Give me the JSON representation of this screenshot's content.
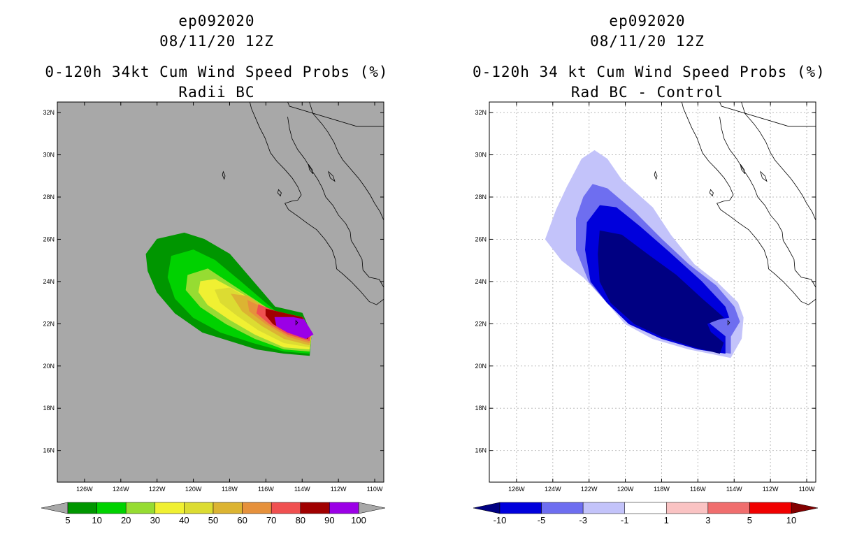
{
  "panels": [
    {
      "storm_id": "ep092020",
      "datetime": "08/11/20 12Z",
      "product_title": "0-120h 34kt Cum Wind Speed Probs (%)",
      "subtitle": "Radii BC",
      "background": "#a8a8a8",
      "lat_ticks": [
        "32N",
        "30N",
        "28N",
        "26N",
        "24N",
        "22N",
        "20N",
        "18N",
        "16N"
      ],
      "lon_ticks": [
        "126W",
        "124W",
        "122W",
        "120W",
        "118W",
        "116W",
        "114W",
        "112W",
        "110W"
      ],
      "gridlines": false,
      "colorbar": {
        "labels": [
          "5",
          "10",
          "20",
          "30",
          "40",
          "50",
          "60",
          "70",
          "80",
          "90",
          "100"
        ],
        "colors": [
          "#009600",
          "#00d200",
          "#96dc32",
          "#f0f032",
          "#dcdc32",
          "#dcb432",
          "#e6913c",
          "#f05050",
          "#a00000",
          "#9b00e6"
        ],
        "end_colors": [
          "#a8a8a8",
          "#a8a8a8"
        ]
      }
    },
    {
      "storm_id": "ep092020",
      "datetime": "08/11/20 12Z",
      "product_title": "0-120h 34 kt Cum Wind Speed Probs (%)",
      "subtitle": "Rad BC - Control",
      "background": "#ffffff",
      "lat_ticks": [
        "32N",
        "30N",
        "28N",
        "26N",
        "24N",
        "22N",
        "20N",
        "18N",
        "16N"
      ],
      "lon_ticks": [
        "126W",
        "124W",
        "122W",
        "120W",
        "118W",
        "116W",
        "114W",
        "112W",
        "110W"
      ],
      "gridlines": true,
      "colorbar": {
        "labels": [
          "-10",
          "-5",
          "-3",
          "-1",
          "1",
          "3",
          "5",
          "10"
        ],
        "colors": [
          "#0000dc",
          "#6e6ef0",
          "#c3c3fa",
          "#ffffff",
          "#fac3c3",
          "#f06e6e",
          "#f00000"
        ],
        "end_colors": [
          "#000082",
          "#820000"
        ]
      }
    }
  ],
  "chart_data": [
    {
      "type": "heatmap",
      "title": "0-120h 34kt Cum Wind Speed Probs (%)",
      "subtitle": "Radii BC",
      "units": "%",
      "lon_range": [
        -127.5,
        -109.5
      ],
      "lat_range": [
        14.5,
        32.5
      ],
      "legend_placement": "bottom",
      "contour_levels": [
        5,
        10,
        20,
        30,
        40,
        50,
        60,
        70,
        80,
        90,
        100
      ],
      "regions": [
        {
          "level": 5,
          "lonlat": [
            [
              -122.0,
              26.0
            ],
            [
              -120.5,
              26.3
            ],
            [
              -119.4,
              26.0
            ],
            [
              -118.0,
              25.3
            ],
            [
              -117.0,
              24.3
            ],
            [
              -115.5,
              22.8
            ],
            [
              -114.0,
              22.5
            ],
            [
              -113.5,
              21.5
            ],
            [
              -113.6,
              20.5
            ],
            [
              -115.0,
              20.6
            ],
            [
              -116.5,
              20.8
            ],
            [
              -118.0,
              21.2
            ],
            [
              -119.5,
              21.6
            ],
            [
              -121.0,
              22.5
            ],
            [
              -122.0,
              23.5
            ],
            [
              -122.5,
              24.5
            ],
            [
              -122.6,
              25.3
            ]
          ]
        },
        {
          "level": 10,
          "lonlat": [
            [
              -121.2,
              25.2
            ],
            [
              -120.0,
              25.5
            ],
            [
              -118.8,
              25.0
            ],
            [
              -117.4,
              24.0
            ],
            [
              -115.5,
              22.6
            ],
            [
              -114.0,
              22.3
            ],
            [
              -113.5,
              21.5
            ],
            [
              -113.6,
              20.6
            ],
            [
              -115.0,
              20.7
            ],
            [
              -116.7,
              21.1
            ],
            [
              -118.5,
              21.6
            ],
            [
              -120.0,
              22.3
            ],
            [
              -121.0,
              23.2
            ],
            [
              -121.4,
              24.2
            ]
          ]
        },
        {
          "level": 20,
          "lonlat": [
            [
              -120.3,
              24.3
            ],
            [
              -119.2,
              24.6
            ],
            [
              -117.8,
              23.8
            ],
            [
              -115.5,
              22.5
            ],
            [
              -114.0,
              22.3
            ],
            [
              -113.5,
              21.5
            ],
            [
              -113.6,
              20.7
            ],
            [
              -115.0,
              20.8
            ],
            [
              -116.6,
              21.3
            ],
            [
              -118.2,
              22.0
            ],
            [
              -119.6,
              22.8
            ],
            [
              -120.4,
              23.6
            ]
          ]
        },
        {
          "level": 30,
          "lonlat": [
            [
              -119.6,
              24.0
            ],
            [
              -118.8,
              24.1
            ],
            [
              -117.5,
              23.5
            ],
            [
              -115.5,
              22.5
            ],
            [
              -114.0,
              22.3
            ],
            [
              -113.5,
              21.5
            ],
            [
              -113.6,
              20.8
            ],
            [
              -115.0,
              20.9
            ],
            [
              -116.6,
              21.5
            ],
            [
              -118.0,
              22.2
            ],
            [
              -119.2,
              22.9
            ],
            [
              -119.7,
              23.5
            ]
          ]
        },
        {
          "level": 40,
          "lonlat": [
            [
              -118.8,
              23.6
            ],
            [
              -118.0,
              23.7
            ],
            [
              -116.8,
              23.1
            ],
            [
              -115.5,
              22.5
            ],
            [
              -114.0,
              22.3
            ],
            [
              -113.5,
              21.6
            ],
            [
              -113.6,
              20.9
            ],
            [
              -115.0,
              21.1
            ],
            [
              -116.4,
              21.7
            ],
            [
              -117.6,
              22.4
            ],
            [
              -118.5,
              23.0
            ]
          ]
        },
        {
          "level": 50,
          "lonlat": [
            [
              -117.9,
              23.4
            ],
            [
              -117.0,
              23.3
            ],
            [
              -115.8,
              22.6
            ],
            [
              -114.0,
              22.3
            ],
            [
              -113.5,
              21.6
            ],
            [
              -113.6,
              21.0
            ],
            [
              -115.0,
              21.3
            ],
            [
              -116.2,
              21.9
            ],
            [
              -117.3,
              22.6
            ]
          ]
        },
        {
          "level": 60,
          "lonlat": [
            [
              -117.0,
              23.1
            ],
            [
              -116.0,
              22.7
            ],
            [
              -114.0,
              22.3
            ],
            [
              -113.5,
              21.6
            ],
            [
              -113.6,
              21.1
            ],
            [
              -114.8,
              21.4
            ],
            [
              -116.0,
              22.0
            ],
            [
              -116.9,
              22.6
            ]
          ]
        },
        {
          "level": 70,
          "lonlat": [
            [
              -116.4,
              22.9
            ],
            [
              -115.2,
              22.5
            ],
            [
              -114.0,
              22.3
            ],
            [
              -113.5,
              21.6
            ],
            [
              -113.6,
              21.2
            ],
            [
              -114.8,
              21.5
            ],
            [
              -115.8,
              22.0
            ],
            [
              -116.5,
              22.5
            ]
          ]
        },
        {
          "level": 80,
          "lonlat": [
            [
              -116.0,
              22.7
            ],
            [
              -115.0,
              22.5
            ],
            [
              -114.0,
              22.3
            ],
            [
              -113.5,
              21.6
            ],
            [
              -113.7,
              21.3
            ],
            [
              -114.8,
              21.6
            ],
            [
              -115.6,
              22.0
            ],
            [
              -116.0,
              22.4
            ]
          ]
        },
        {
          "level": 90,
          "lonlat": [
            [
              -115.5,
              22.3
            ],
            [
              -114.5,
              22.3
            ],
            [
              -113.9,
              22.2
            ],
            [
              -113.4,
              21.5
            ],
            [
              -113.8,
              21.3
            ],
            [
              -114.8,
              21.6
            ],
            [
              -115.4,
              21.9
            ]
          ]
        }
      ]
    },
    {
      "type": "heatmap",
      "title": "0-120h 34 kt Cum Wind Speed Probs (%)",
      "subtitle": "Rad BC - Control",
      "units": "%",
      "lon_range": [
        -127.5,
        -109.5
      ],
      "lat_range": [
        14.5,
        32.5
      ],
      "legend_placement": "bottom",
      "grid": true,
      "contour_levels": [
        -10,
        -5,
        -3,
        -1,
        1,
        3,
        5,
        10
      ],
      "regions": [
        {
          "level": -1,
          "lonlat": [
            [
              -122.4,
              29.8
            ],
            [
              -121.7,
              30.2
            ],
            [
              -121.0,
              29.8
            ],
            [
              -120.2,
              28.8
            ],
            [
              -118.5,
              27.5
            ],
            [
              -117.5,
              26.2
            ],
            [
              -116.2,
              24.8
            ],
            [
              -115.0,
              24.0
            ],
            [
              -113.8,
              23.0
            ],
            [
              -113.5,
              22.3
            ],
            [
              -113.6,
              21.3
            ],
            [
              -114.2,
              20.4
            ],
            [
              -116.5,
              20.8
            ],
            [
              -118.5,
              21.3
            ],
            [
              -120.0,
              22.0
            ],
            [
              -121.2,
              23.2
            ],
            [
              -122.3,
              24.2
            ],
            [
              -123.5,
              25.0
            ],
            [
              -124.4,
              26.0
            ],
            [
              -123.8,
              27.4
            ],
            [
              -123.2,
              28.5
            ]
          ]
        },
        {
          "level": -3,
          "lonlat": [
            [
              -121.8,
              28.6
            ],
            [
              -121.0,
              28.4
            ],
            [
              -119.5,
              27.3
            ],
            [
              -118.0,
              26.0
            ],
            [
              -116.5,
              24.8
            ],
            [
              -115.0,
              23.8
            ],
            [
              -114.0,
              22.8
            ],
            [
              -113.7,
              22.1
            ],
            [
              -114.2,
              21.4
            ],
            [
              -114.2,
              20.6
            ],
            [
              -116.0,
              20.8
            ],
            [
              -118.0,
              21.3
            ],
            [
              -119.8,
              22.0
            ],
            [
              -121.0,
              23.0
            ],
            [
              -122.0,
              24.0
            ],
            [
              -122.7,
              25.5
            ],
            [
              -122.7,
              27.0
            ],
            [
              -122.3,
              28.0
            ]
          ]
        },
        {
          "level": -5,
          "lonlat": [
            [
              -121.4,
              27.6
            ],
            [
              -120.5,
              27.5
            ],
            [
              -119.2,
              26.6
            ],
            [
              -117.6,
              25.4
            ],
            [
              -115.8,
              24.0
            ],
            [
              -114.5,
              22.8
            ],
            [
              -114.3,
              22.3
            ],
            [
              -115.5,
              22.1
            ],
            [
              -114.5,
              21.4
            ],
            [
              -114.5,
              20.6
            ],
            [
              -116.0,
              20.8
            ],
            [
              -118.0,
              21.3
            ],
            [
              -119.8,
              22.0
            ],
            [
              -121.0,
              23.0
            ],
            [
              -121.9,
              24.0
            ],
            [
              -122.2,
              25.5
            ],
            [
              -122.1,
              26.8
            ]
          ]
        },
        {
          "level": -10,
          "lonlat": [
            [
              -121.4,
              26.4
            ],
            [
              -120.2,
              26.2
            ],
            [
              -118.8,
              25.3
            ],
            [
              -117.2,
              24.3
            ],
            [
              -115.8,
              23.2
            ],
            [
              -114.6,
              22.3
            ],
            [
              -115.5,
              22.0
            ],
            [
              -115.3,
              21.6
            ],
            [
              -114.6,
              21.1
            ],
            [
              -114.8,
              20.6
            ],
            [
              -116.2,
              20.9
            ],
            [
              -118.0,
              21.4
            ],
            [
              -119.5,
              22.0
            ],
            [
              -120.8,
              23.0
            ],
            [
              -121.4,
              24.0
            ],
            [
              -121.5,
              25.3
            ]
          ]
        }
      ]
    }
  ]
}
